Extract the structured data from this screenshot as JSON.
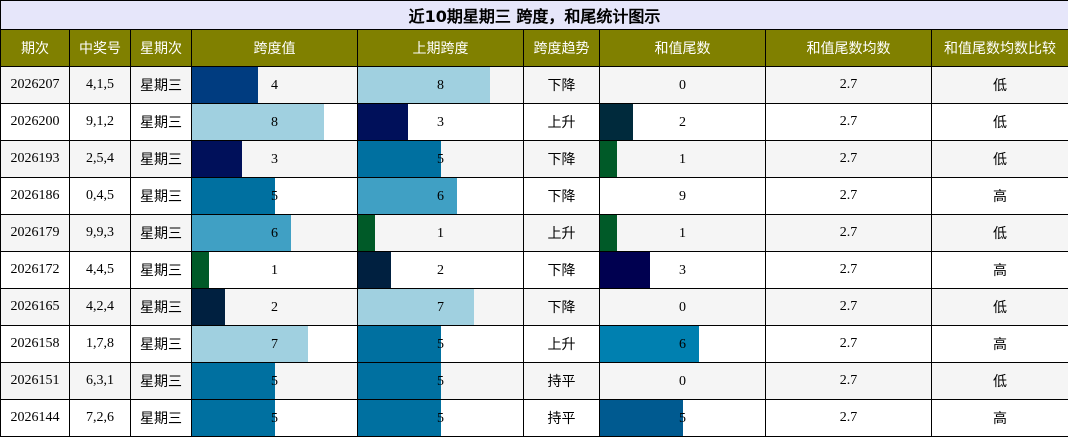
{
  "title": "近10期星期三 跨度，和尾统计图示",
  "headers": [
    "期次",
    "中奖号",
    "星期次",
    "跨度值",
    "上期跨度",
    "跨度趋势",
    "和值尾数",
    "和值尾数均数",
    "和值尾数均数比较"
  ],
  "bar_max": 10,
  "colors": {
    "header_bg": "#808000",
    "title_bg": "#e6e6fa",
    "span_bar": {
      "1": "#005a28",
      "2": "#002040",
      "3": "#00105a",
      "4": "#003c80",
      "5": "#0070a0",
      "6": "#40a0c4",
      "7": "#a0d0e0",
      "8": "#a0d0e0",
      "9": "#a0d0e0"
    },
    "tail_bar": {
      "1": "#005a28",
      "2": "#002a3c",
      "3": "#000050",
      "5": "#005a90",
      "6": "#0080b0"
    }
  },
  "chart_data": {
    "type": "table",
    "rows": [
      {
        "period": "2026207",
        "numbers": "4,1,5",
        "weekday": "星期三",
        "span": 4,
        "prev_span": 8,
        "trend": "下降",
        "sum_tail": 0,
        "avg": "2.7",
        "compare": "低"
      },
      {
        "period": "2026200",
        "numbers": "9,1,2",
        "weekday": "星期三",
        "span": 8,
        "prev_span": 3,
        "trend": "上升",
        "sum_tail": 2,
        "avg": "2.7",
        "compare": "低"
      },
      {
        "period": "2026193",
        "numbers": "2,5,4",
        "weekday": "星期三",
        "span": 3,
        "prev_span": 5,
        "trend": "下降",
        "sum_tail": 1,
        "avg": "2.7",
        "compare": "低"
      },
      {
        "period": "2026186",
        "numbers": "0,4,5",
        "weekday": "星期三",
        "span": 5,
        "prev_span": 6,
        "trend": "下降",
        "sum_tail": 9,
        "avg": "2.7",
        "compare": "高"
      },
      {
        "period": "2026179",
        "numbers": "9,9,3",
        "weekday": "星期三",
        "span": 6,
        "prev_span": 1,
        "trend": "上升",
        "sum_tail": 1,
        "avg": "2.7",
        "compare": "低"
      },
      {
        "period": "2026172",
        "numbers": "4,4,5",
        "weekday": "星期三",
        "span": 1,
        "prev_span": 2,
        "trend": "下降",
        "sum_tail": 3,
        "avg": "2.7",
        "compare": "高"
      },
      {
        "period": "2026165",
        "numbers": "4,2,4",
        "weekday": "星期三",
        "span": 2,
        "prev_span": 7,
        "trend": "下降",
        "sum_tail": 0,
        "avg": "2.7",
        "compare": "低"
      },
      {
        "period": "2026158",
        "numbers": "1,7,8",
        "weekday": "星期三",
        "span": 7,
        "prev_span": 5,
        "trend": "上升",
        "sum_tail": 6,
        "avg": "2.7",
        "compare": "高"
      },
      {
        "period": "2026151",
        "numbers": "6,3,1",
        "weekday": "星期三",
        "span": 5,
        "prev_span": 5,
        "trend": "持平",
        "sum_tail": 0,
        "avg": "2.7",
        "compare": "低"
      },
      {
        "period": "2026144",
        "numbers": "7,2,6",
        "weekday": "星期三",
        "span": 5,
        "prev_span": 5,
        "trend": "持平",
        "sum_tail": 5,
        "avg": "2.7",
        "compare": "高"
      }
    ]
  }
}
